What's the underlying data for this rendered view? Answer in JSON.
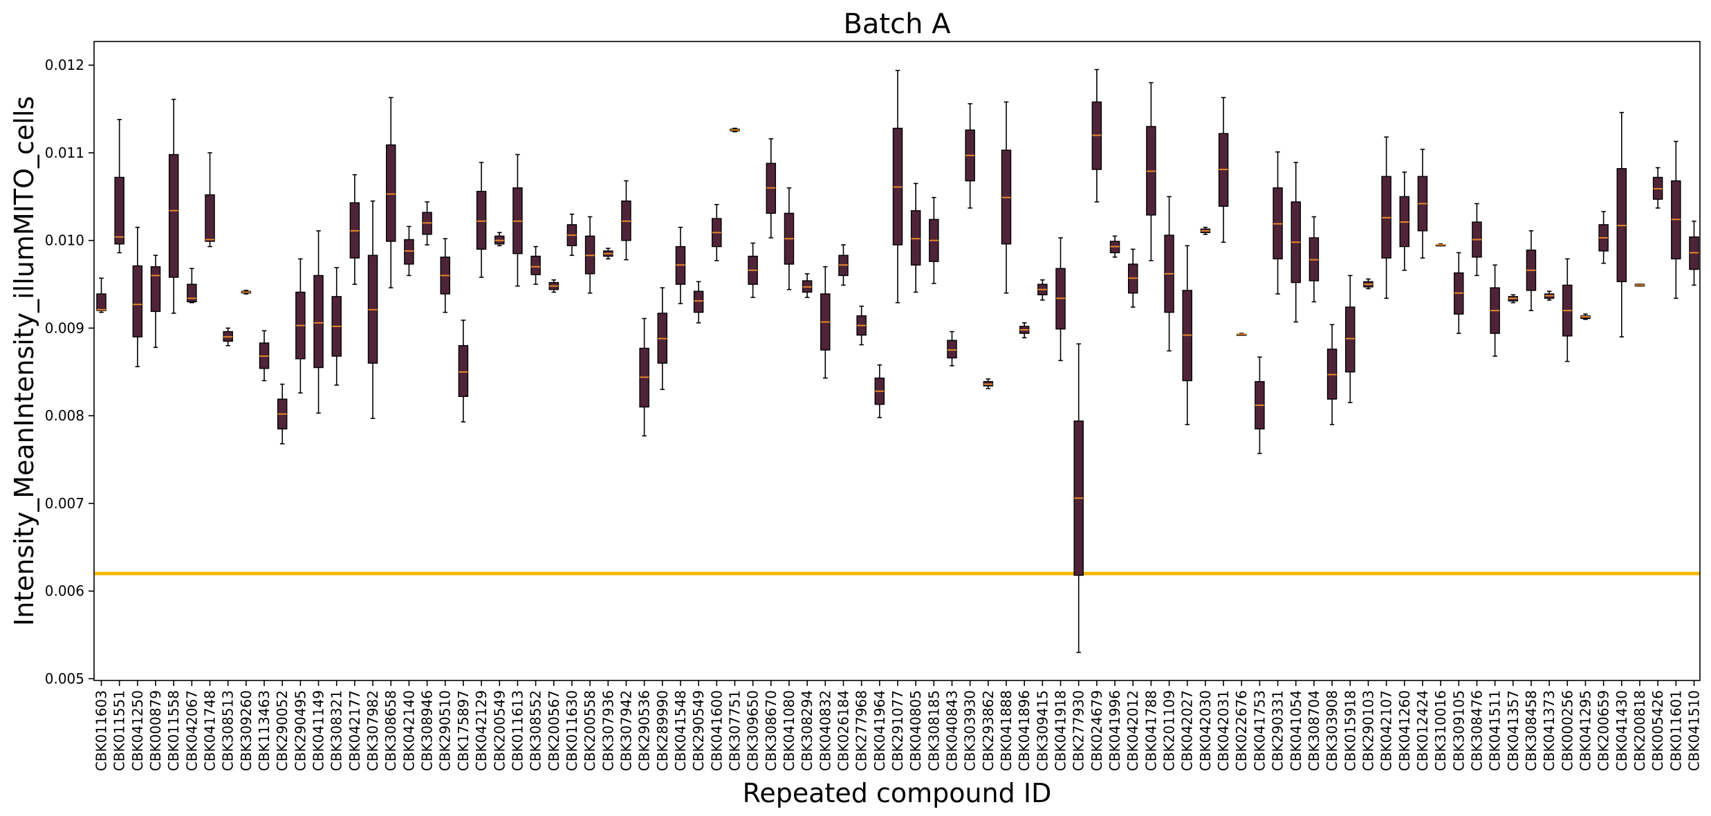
{
  "chart_data": {
    "type": "box",
    "title": "Batch A",
    "xlabel": "Repeated compound ID",
    "ylabel": "Intensity_MeanIntensity_illumMITO_cells",
    "ylim": [
      0.00498,
      0.01227
    ],
    "yticks": [
      "0.005",
      "0.006",
      "0.007",
      "0.008",
      "0.009",
      "0.010",
      "0.011",
      "0.012"
    ],
    "ytick_values": [
      0.005,
      0.006,
      0.007,
      0.008,
      0.009,
      0.01,
      0.011,
      0.012
    ],
    "grid": false,
    "threshold_line": 0.0062,
    "colors": {
      "box": "#4f2439",
      "median": "#e8872a",
      "threshold": "#f5b800",
      "whisker": "#000000"
    },
    "categories": [
      "CBK011603",
      "CBK011551",
      "CBK041250",
      "CBK000879",
      "CBK011558",
      "CBK042067",
      "CBK041748",
      "CBK308513",
      "CBK309260",
      "CBK113463",
      "CBK290052",
      "CBK290495",
      "CBK041149",
      "CBK308321",
      "CBK042177",
      "CBK307982",
      "CBK308658",
      "CBK042140",
      "CBK308946",
      "CBK290510",
      "CBK175897",
      "CBK042129",
      "CBK200549",
      "CBK011613",
      "CBK308552",
      "CBK200567",
      "CBK011630",
      "CBK200558",
      "CBK307936",
      "CBK307942",
      "CBK290536",
      "CBK289990",
      "CBK041548",
      "CBK290549",
      "CBK041600",
      "CBK307751",
      "CBK309650",
      "CBK308670",
      "CBK041080",
      "CBK308294",
      "CBK040832",
      "CBK026184",
      "CBK277968",
      "CBK041964",
      "CBK291077",
      "CBK040805",
      "CBK308185",
      "CBK040843",
      "CBK303930",
      "CBK293862",
      "CBK041888",
      "CBK041896",
      "CBK309415",
      "CBK041918",
      "CBK277930",
      "CBK024679",
      "CBK041996",
      "CBK042012",
      "CBK041788",
      "CBK201109",
      "CBK042027",
      "CBK042030",
      "CBK042031",
      "CBK022676",
      "CBK041753",
      "CBK290331",
      "CBK041054",
      "CBK308704",
      "CBK303908",
      "CBK015918",
      "CBK290103",
      "CBK042107",
      "CBK041260",
      "CBK012424",
      "CBK310016",
      "CBK309105",
      "CBK308476",
      "CBK041511",
      "CBK041357",
      "CBK308458",
      "CBK041373",
      "CBK000256",
      "CBK041295",
      "CBK200659",
      "CBK041430",
      "CBK200818",
      "CBK005426",
      "CBK011601",
      "CBK041510"
    ],
    "boxes": [
      [
        0.00918,
        0.0092,
        0.00921,
        0.00939,
        0.00957
      ],
      [
        0.00986,
        0.00996,
        0.01004,
        0.01072,
        0.01138
      ],
      [
        0.00856,
        0.0089,
        0.00927,
        0.00971,
        0.01015
      ],
      [
        0.00878,
        0.00919,
        0.0096,
        0.0097,
        0.00983
      ],
      [
        0.00917,
        0.00958,
        0.01034,
        0.01098,
        0.01161
      ],
      [
        0.00929,
        0.0093,
        0.00934,
        0.0095,
        0.00968
      ],
      [
        0.00993,
        0.00999,
        0.01001,
        0.01052,
        0.011
      ],
      [
        0.0088,
        0.00885,
        0.0089,
        0.00896,
        0.009
      ],
      [
        0.00939,
        0.0094,
        0.00941,
        0.00942,
        0.00943
      ],
      [
        0.0084,
        0.00854,
        0.00868,
        0.00883,
        0.00897
      ],
      [
        0.00768,
        0.00785,
        0.00802,
        0.00819,
        0.00836
      ],
      [
        0.00826,
        0.00865,
        0.00903,
        0.00941,
        0.00979
      ],
      [
        0.00803,
        0.00855,
        0.00906,
        0.0096,
        0.01011
      ],
      [
        0.00835,
        0.00868,
        0.00902,
        0.00936,
        0.00969
      ],
      [
        0.0095,
        0.0098,
        0.01011,
        0.01043,
        0.01075
      ],
      [
        0.00797,
        0.0086,
        0.00921,
        0.00983,
        0.01045
      ],
      [
        0.00946,
        0.00999,
        0.01053,
        0.01109,
        0.01163
      ],
      [
        0.0096,
        0.00973,
        0.00988,
        0.01001,
        0.01016
      ],
      [
        0.00995,
        0.01007,
        0.0102,
        0.01032,
        0.01044
      ],
      [
        0.00918,
        0.00939,
        0.0096,
        0.00981,
        0.01002
      ],
      [
        0.00793,
        0.00822,
        0.0085,
        0.0088,
        0.00909
      ],
      [
        0.00958,
        0.0099,
        0.01022,
        0.01056,
        0.01089
      ],
      [
        0.00994,
        0.00996,
        0.01,
        0.01005,
        0.01009
      ],
      [
        0.00948,
        0.00985,
        0.01022,
        0.0106,
        0.01098
      ],
      [
        0.0095,
        0.00961,
        0.0097,
        0.00982,
        0.00993
      ],
      [
        0.00941,
        0.00944,
        0.00948,
        0.00952,
        0.00955
      ],
      [
        0.00983,
        0.00994,
        0.01006,
        0.01018,
        0.0103
      ],
      [
        0.0094,
        0.00962,
        0.00983,
        0.01005,
        0.01027
      ],
      [
        0.00979,
        0.00982,
        0.00985,
        0.00988,
        0.00991
      ],
      [
        0.00978,
        0.01,
        0.01022,
        0.01045,
        0.01068
      ],
      [
        0.00777,
        0.0081,
        0.00844,
        0.00877,
        0.00911
      ],
      [
        0.0083,
        0.0086,
        0.00888,
        0.00917,
        0.00946
      ],
      [
        0.00928,
        0.0095,
        0.00972,
        0.00993,
        0.01015
      ],
      [
        0.00906,
        0.00918,
        0.00931,
        0.00942,
        0.00953
      ],
      [
        0.00977,
        0.00993,
        0.01009,
        0.01025,
        0.01041
      ],
      [
        0.01124,
        0.01125,
        0.01126,
        0.01127,
        0.01128
      ],
      [
        0.00935,
        0.0095,
        0.00966,
        0.00982,
        0.00997
      ],
      [
        0.01003,
        0.01031,
        0.0106,
        0.01088,
        0.01116
      ],
      [
        0.00944,
        0.00973,
        0.01002,
        0.01031,
        0.0106
      ],
      [
        0.00935,
        0.00941,
        0.00947,
        0.00954,
        0.00962
      ],
      [
        0.00843,
        0.00875,
        0.00907,
        0.00939,
        0.0097
      ],
      [
        0.00949,
        0.0096,
        0.00972,
        0.00983,
        0.00995
      ],
      [
        0.00881,
        0.00892,
        0.00903,
        0.00914,
        0.00925
      ],
      [
        0.00798,
        0.00813,
        0.00828,
        0.00843,
        0.00858
      ],
      [
        0.00929,
        0.00995,
        0.01061,
        0.01128,
        0.01194
      ],
      [
        0.00941,
        0.00972,
        0.01002,
        0.01034,
        0.01065
      ],
      [
        0.00951,
        0.00976,
        0.01,
        0.01024,
        0.01049
      ],
      [
        0.00857,
        0.00866,
        0.00875,
        0.00886,
        0.00896
      ],
      [
        0.01037,
        0.01068,
        0.01097,
        0.01126,
        0.01156
      ],
      [
        0.00831,
        0.00834,
        0.00836,
        0.00839,
        0.00842
      ],
      [
        0.0094,
        0.00996,
        0.01049,
        0.01103,
        0.01158
      ],
      [
        0.00889,
        0.00894,
        0.00898,
        0.00902,
        0.00906
      ],
      [
        0.00932,
        0.00938,
        0.00944,
        0.0095,
        0.00955
      ],
      [
        0.00863,
        0.00899,
        0.00934,
        0.00968,
        0.01003
      ],
      [
        0.0053,
        0.00618,
        0.00706,
        0.00794,
        0.00882
      ],
      [
        0.01044,
        0.01081,
        0.0112,
        0.01158,
        0.01195
      ],
      [
        0.00981,
        0.00986,
        0.00993,
        0.00999,
        0.01005
      ],
      [
        0.00924,
        0.0094,
        0.00957,
        0.00973,
        0.0099
      ],
      [
        0.00977,
        0.01029,
        0.01079,
        0.0113,
        0.0118
      ],
      [
        0.00874,
        0.00918,
        0.00962,
        0.01006,
        0.0105
      ],
      [
        0.0079,
        0.0084,
        0.00892,
        0.00943,
        0.00994
      ],
      [
        0.01007,
        0.01009,
        0.01011,
        0.01013,
        0.01015
      ],
      [
        0.00998,
        0.01039,
        0.01081,
        0.01122,
        0.01163
      ],
      [
        0.00892,
        0.00892,
        0.00893,
        0.00893,
        0.00894
      ],
      [
        0.00757,
        0.00785,
        0.00812,
        0.00839,
        0.00867
      ],
      [
        0.00939,
        0.00979,
        0.01019,
        0.0106,
        0.01101
      ],
      [
        0.00907,
        0.00952,
        0.00998,
        0.01044,
        0.01089
      ],
      [
        0.0093,
        0.00954,
        0.00978,
        0.01003,
        0.01027
      ],
      [
        0.0079,
        0.00819,
        0.00847,
        0.00876,
        0.00904
      ],
      [
        0.00815,
        0.0085,
        0.00888,
        0.00924,
        0.0096
      ],
      [
        0.00945,
        0.00947,
        0.0095,
        0.00953,
        0.00956
      ],
      [
        0.00934,
        0.0098,
        0.01026,
        0.01073,
        0.01118
      ],
      [
        0.00966,
        0.00993,
        0.01021,
        0.0105,
        0.01078
      ],
      [
        0.0098,
        0.01011,
        0.01042,
        0.01073,
        0.01104
      ],
      [
        0.00994,
        0.00994,
        0.00995,
        0.00995,
        0.00996
      ],
      [
        0.00894,
        0.00916,
        0.0094,
        0.00963,
        0.00986
      ],
      [
        0.0096,
        0.00981,
        0.01001,
        0.01021,
        0.01042
      ],
      [
        0.00868,
        0.00894,
        0.0092,
        0.00946,
        0.00972
      ],
      [
        0.00929,
        0.00931,
        0.00934,
        0.00936,
        0.00938
      ],
      [
        0.0092,
        0.00943,
        0.00966,
        0.00989,
        0.01011
      ],
      [
        0.00932,
        0.00934,
        0.00937,
        0.00939,
        0.00942
      ],
      [
        0.00862,
        0.00891,
        0.0092,
        0.00949,
        0.00979
      ],
      [
        0.0091,
        0.00911,
        0.00913,
        0.00914,
        0.00916
      ],
      [
        0.00974,
        0.00988,
        0.01003,
        0.01018,
        0.01033
      ],
      [
        0.0089,
        0.00953,
        0.01017,
        0.01082,
        0.01146
      ],
      [
        0.00948,
        0.00948,
        0.00949,
        0.0095,
        0.0095
      ],
      [
        0.01037,
        0.01047,
        0.01059,
        0.01072,
        0.01083
      ],
      [
        0.00934,
        0.00979,
        0.01024,
        0.01068,
        0.01113
      ],
      [
        0.00949,
        0.00967,
        0.00986,
        0.01004,
        0.01022
      ]
    ]
  }
}
